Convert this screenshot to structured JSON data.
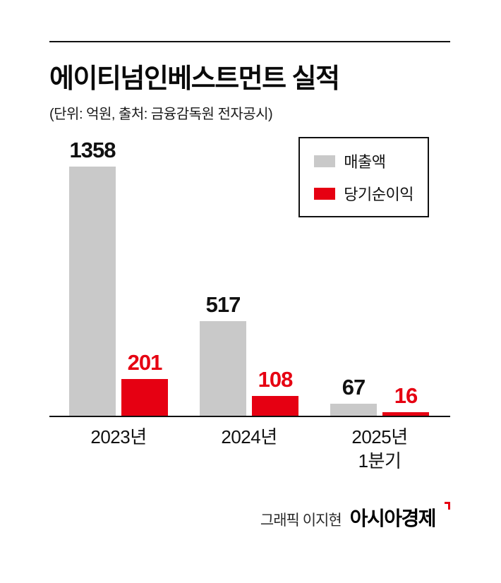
{
  "header": {
    "title": "에이티넘인베스트먼트 실적",
    "subtitle": "(단위: 억원, 출처: 금융감독원 전자공시)"
  },
  "chart_data": {
    "type": "bar",
    "categories": [
      "2023년",
      "2024년",
      "2025년\n1분기"
    ],
    "series": [
      {
        "name": "매출액",
        "color": "#c9c9c9",
        "label_color": "#111111",
        "values": [
          1358,
          517,
          67
        ]
      },
      {
        "name": "당기순이익",
        "color": "#e60012",
        "label_color": "#e60012",
        "values": [
          201,
          108,
          16
        ]
      }
    ],
    "ylim": [
      0,
      1400
    ],
    "grid": false,
    "value_labels": true,
    "legend_position": "top-right",
    "title": "에이티넘인베스트먼트 실적",
    "xlabel": "",
    "ylabel": "억원"
  },
  "footer": {
    "credit": "그래픽 이지현",
    "brand": "아시아경제"
  }
}
